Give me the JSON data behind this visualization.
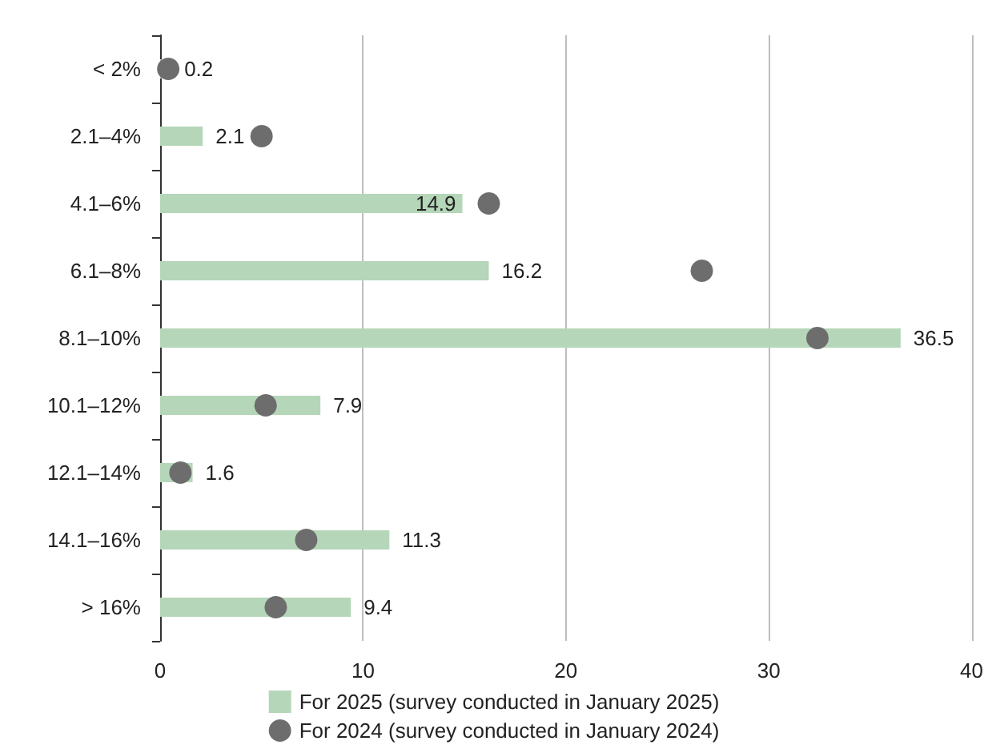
{
  "chart_data": {
    "type": "bar",
    "orientation": "horizontal",
    "categories": [
      "< 2%",
      "2.1–4%",
      "4.1–6%",
      "6.1–8%",
      "8.1–10%",
      "10.1–12%",
      "12.1–14%",
      "14.1–16%",
      "> 16%"
    ],
    "series": [
      {
        "name": "For 2025 (survey conducted in January 2025)",
        "color": "#b5d6b8",
        "values": [
          0.2,
          2.1,
          14.9,
          16.2,
          36.5,
          7.9,
          1.6,
          11.3,
          9.4
        ],
        "data_labels": true
      },
      {
        "name": "For 2024 (survey conducted in January 2024)",
        "type": "scatter",
        "color": "#6d6d6d",
        "values": [
          0.4,
          5.0,
          16.2,
          26.7,
          32.4,
          5.2,
          1.0,
          7.2,
          5.7
        ]
      }
    ],
    "xlim": [
      0,
      40
    ],
    "xticks": [
      0,
      10,
      20,
      30,
      40
    ],
    "grid": "x",
    "legend": "bottom",
    "marker": "circle"
  }
}
